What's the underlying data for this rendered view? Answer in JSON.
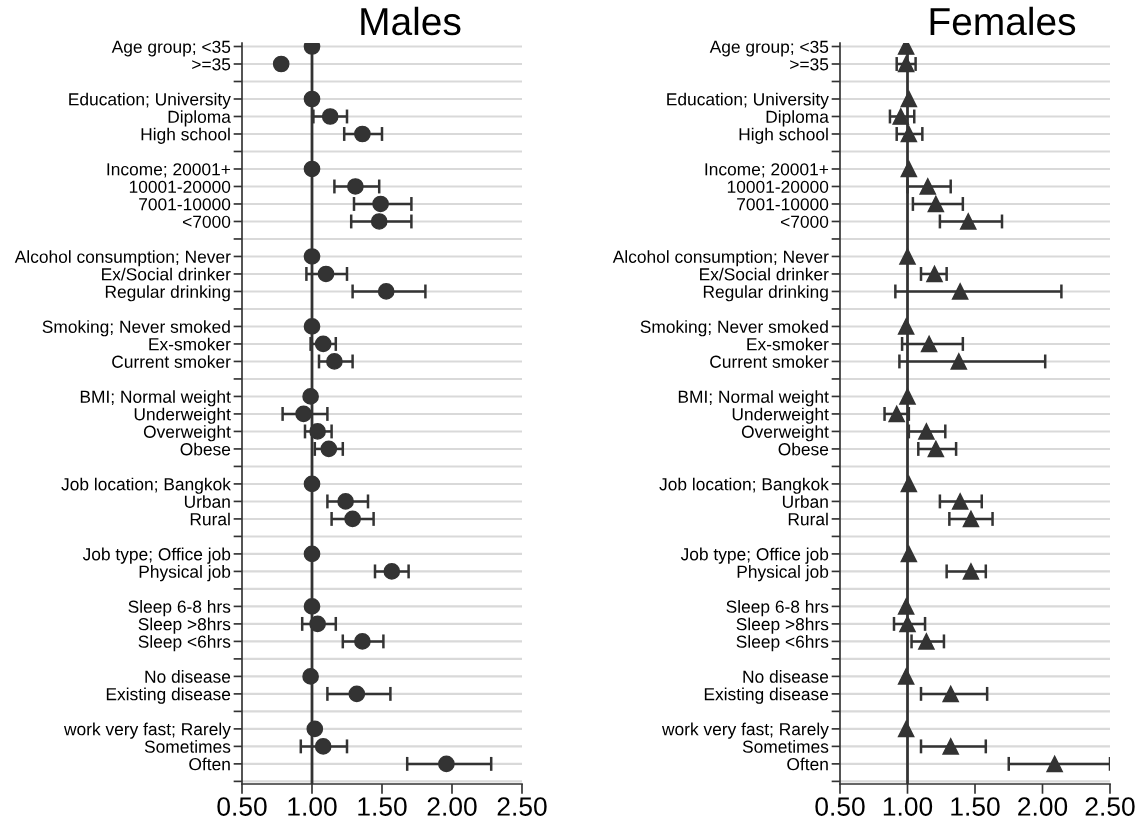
{
  "chart_data": [
    {
      "type": "scatter",
      "title": "Males",
      "orientation": "horizontal",
      "marker": "circle",
      "grid": "y",
      "categories": [
        "Age group; <35",
        ">=35",
        null,
        "Education; University",
        "Diploma",
        "High school",
        null,
        "Income; 20001+",
        "10001-20000",
        "7001-10000",
        "<7000",
        null,
        "Alcohol consumption; Never",
        "Ex/Social drinker",
        "Regular drinking",
        null,
        "Smoking; Never smoked",
        "Ex-smoker",
        "Current smoker",
        null,
        "BMI; Normal weight",
        "Underweight",
        "Overweight",
        "Obese",
        null,
        "Job location; Bangkok",
        "Urban",
        "Rural",
        null,
        "Job type; Office job",
        "Physical job",
        null,
        "Sleep 6-8 hrs",
        "Sleep >8hrs",
        "Sleep <6hrs",
        null,
        "No disease",
        "Existing disease",
        null,
        "work very fast; Rarely",
        "Sometimes",
        "Often",
        null
      ],
      "series": [
        {
          "color": "#333333",
          "values": [
            1.0,
            0.78,
            null,
            1.0,
            1.13,
            1.36,
            null,
            1.0,
            1.31,
            1.49,
            1.48,
            null,
            1.0,
            1.1,
            1.53,
            null,
            1.0,
            1.08,
            1.16,
            null,
            0.99,
            0.94,
            1.04,
            1.12,
            null,
            1.0,
            1.24,
            1.29,
            null,
            1.0,
            1.57,
            null,
            1.0,
            1.04,
            1.36,
            null,
            0.99,
            1.32,
            null,
            1.02,
            1.08,
            1.96,
            null
          ],
          "errors": [
            null,
            null,
            null,
            null,
            [
              1.01,
              1.25
            ],
            [
              1.23,
              1.5
            ],
            null,
            null,
            [
              1.16,
              1.48
            ],
            [
              1.3,
              1.71
            ],
            [
              1.28,
              1.71
            ],
            null,
            null,
            [
              0.96,
              1.25
            ],
            [
              1.29,
              1.81
            ],
            null,
            null,
            [
              0.99,
              1.17
            ],
            [
              1.05,
              1.29
            ],
            null,
            null,
            [
              0.79,
              1.11
            ],
            [
              0.95,
              1.14
            ],
            [
              1.02,
              1.22
            ],
            null,
            null,
            [
              1.11,
              1.4
            ],
            [
              1.14,
              1.44
            ],
            null,
            null,
            [
              1.45,
              1.69
            ],
            null,
            null,
            [
              0.93,
              1.17
            ],
            [
              1.22,
              1.51
            ],
            null,
            null,
            [
              1.11,
              1.56
            ],
            null,
            null,
            [
              0.92,
              1.25
            ],
            [
              1.68,
              2.28
            ],
            null
          ]
        }
      ],
      "xlim": [
        0.5,
        2.5
      ],
      "xticks": [
        {
          "value": 0.5,
          "label": "0.50"
        },
        {
          "value": 1.0,
          "label": "1.00"
        },
        {
          "value": 1.5,
          "label": "1.50"
        },
        {
          "value": 2.0,
          "label": "2.00"
        },
        {
          "value": 2.5,
          "label": "2.50"
        }
      ],
      "ref_lines": [
        {
          "axis": "x",
          "value": 1,
          "color": "#333333"
        }
      ]
    },
    {
      "type": "scatter",
      "title": "Females",
      "orientation": "horizontal",
      "marker": "triangle",
      "grid": "y",
      "categories": [
        "Age group; <35",
        ">=35",
        null,
        "Education; University",
        "Diploma",
        "High school",
        null,
        "Income; 20001+",
        "10001-20000",
        "7001-10000",
        "<7000",
        null,
        "Alcohol consumption; Never",
        "Ex/Social drinker",
        "Regular drinking",
        null,
        "Smoking; Never smoked",
        "Ex-smoker",
        "Current smoker",
        null,
        "BMI; Normal weight",
        "Underweight",
        "Overweight",
        "Obese",
        null,
        "Job location; Bangkok",
        "Urban",
        "Rural",
        null,
        "Job type; Office job",
        "Physical job",
        null,
        "Sleep 6-8 hrs",
        "Sleep >8hrs",
        "Sleep <6hrs",
        null,
        "No disease",
        "Existing disease",
        null,
        "work very fast; Rarely",
        "Sometimes",
        "Often",
        null
      ],
      "series": [
        {
          "color": "#333333",
          "values": [
            0.99,
            0.99,
            null,
            1.01,
            0.95,
            1.01,
            null,
            1.01,
            1.15,
            1.21,
            1.45,
            null,
            1.0,
            1.2,
            1.39,
            null,
            0.99,
            1.16,
            1.38,
            null,
            1.0,
            0.92,
            1.14,
            1.21,
            null,
            1.01,
            1.39,
            1.47,
            null,
            1.01,
            1.47,
            null,
            0.99,
            1.0,
            1.14,
            null,
            0.99,
            1.32,
            null,
            0.99,
            1.32,
            2.09,
            null
          ],
          "errors": [
            null,
            [
              0.92,
              1.06
            ],
            null,
            null,
            [
              0.87,
              1.05
            ],
            [
              0.92,
              1.11
            ],
            null,
            null,
            [
              1.0,
              1.32
            ],
            [
              1.04,
              1.41
            ],
            [
              1.24,
              1.7
            ],
            null,
            null,
            [
              1.1,
              1.29
            ],
            [
              0.91,
              2.14
            ],
            null,
            null,
            [
              0.96,
              1.41
            ],
            [
              0.94,
              2.02
            ],
            null,
            null,
            [
              0.83,
              1.01
            ],
            [
              1.01,
              1.28
            ],
            [
              1.08,
              1.36
            ],
            null,
            null,
            [
              1.24,
              1.55
            ],
            [
              1.31,
              1.63
            ],
            null,
            null,
            [
              1.29,
              1.58
            ],
            null,
            null,
            [
              0.9,
              1.13
            ],
            [
              1.03,
              1.27
            ],
            null,
            null,
            [
              1.1,
              1.59
            ],
            null,
            null,
            [
              1.1,
              1.58
            ],
            [
              1.75,
              2.5
            ],
            null
          ]
        }
      ],
      "xlim": [
        0.5,
        2.5
      ],
      "xticks": [
        {
          "value": 0.5,
          "label": "0.50"
        },
        {
          "value": 1.0,
          "label": "1.00"
        },
        {
          "value": 1.5,
          "label": "1.50"
        },
        {
          "value": 2.0,
          "label": "2.00"
        },
        {
          "value": 2.5,
          "label": "2.50"
        }
      ],
      "ref_lines": [
        {
          "axis": "x",
          "value": 1,
          "color": "#333333"
        }
      ]
    }
  ]
}
